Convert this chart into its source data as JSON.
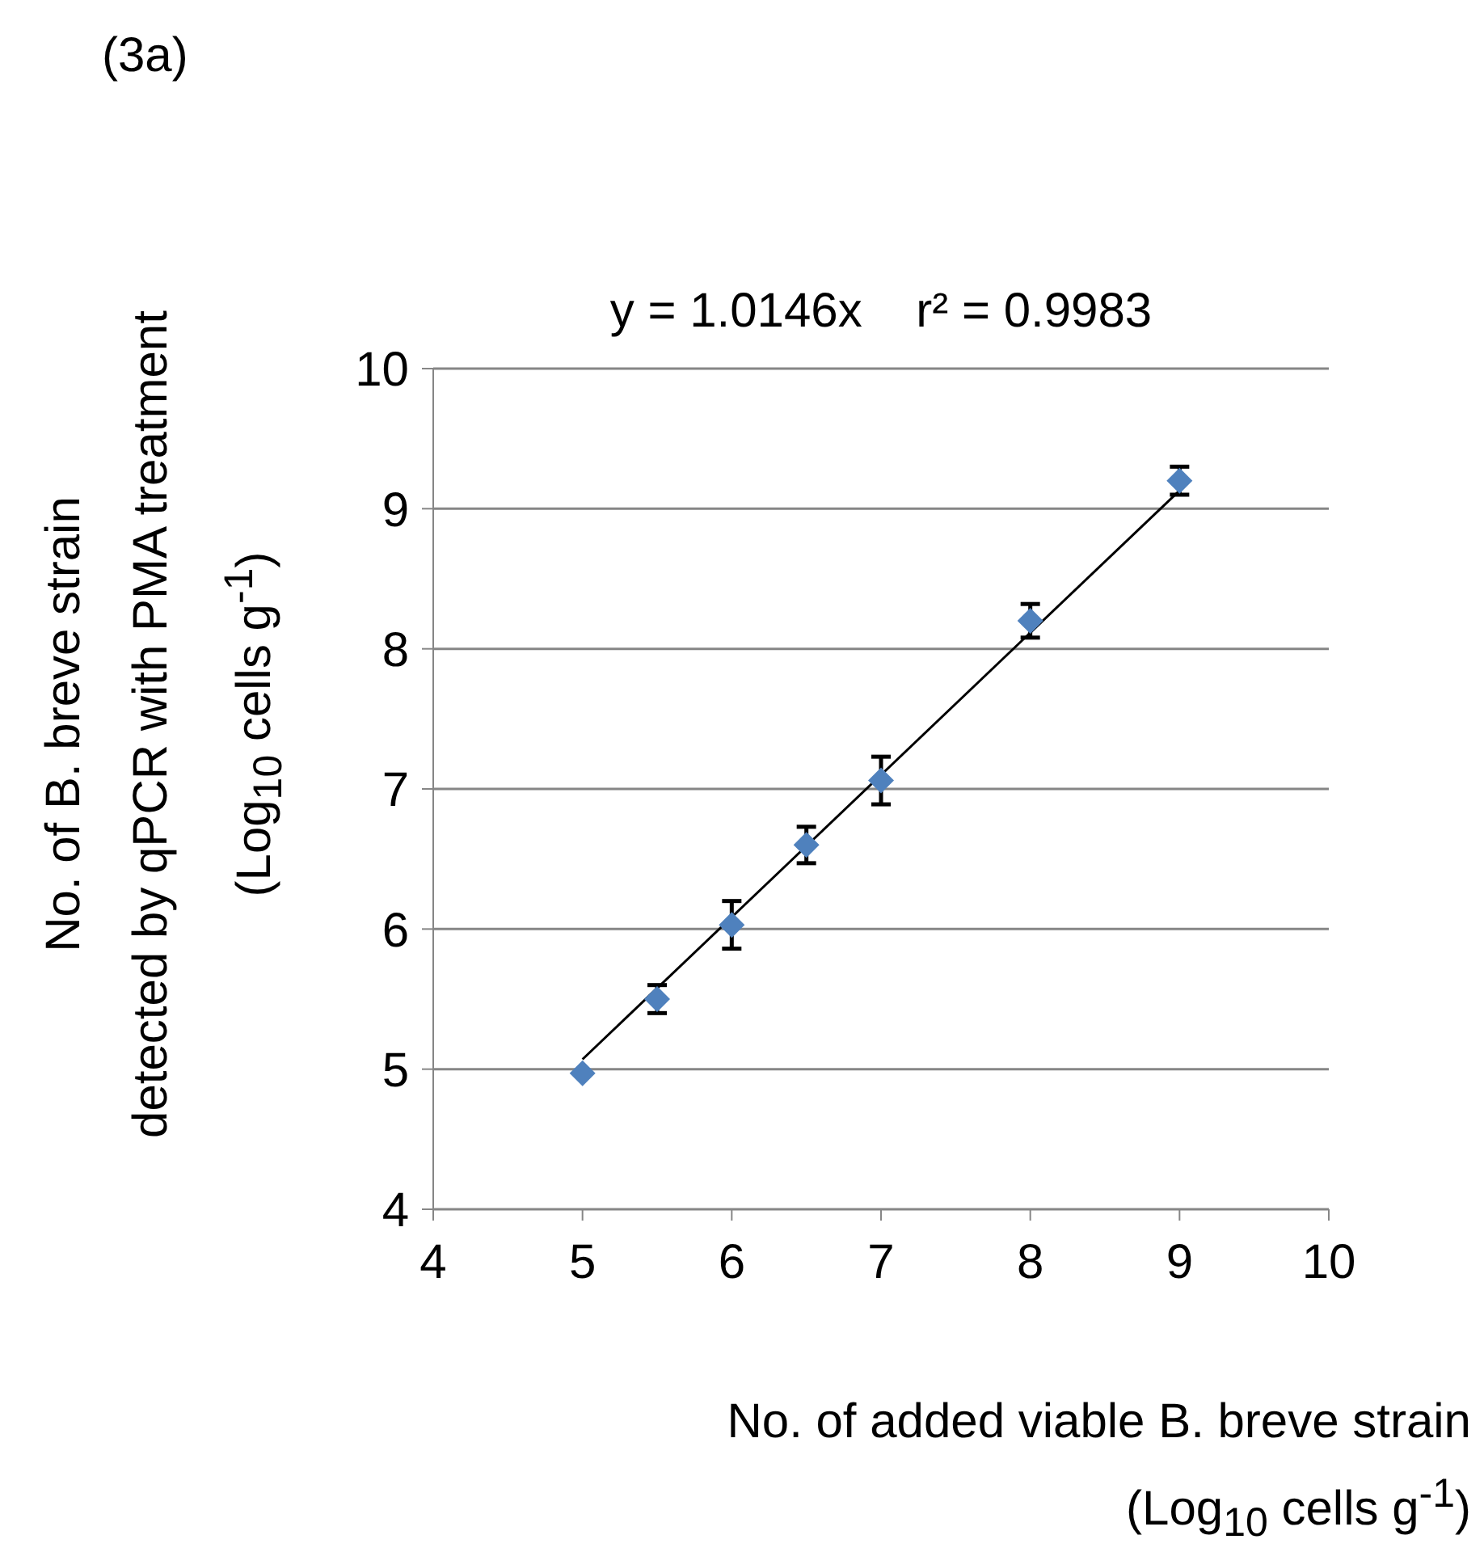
{
  "chart_data": {
    "type": "scatter",
    "title": "y = 1.0146x    r² = 0.9983",
    "xlabel": "No. of added viable B. breve strain\n(Log$_{10}$ cells g$^{-1}$)",
    "ylabel": "No. of B. breve strain\ndetected by qPCR with PMA treatment\n(Log$_{10}$ cells g$^{-1}$)",
    "annotations": [
      "(3a)"
    ],
    "series": [
      {
        "color": "#4f81bd",
        "marker": "diamond",
        "x": [
          5,
          5.5,
          6,
          6.5,
          7,
          8,
          9
        ],
        "values": [
          4.97,
          5.5,
          6.03,
          6.6,
          7.06,
          8.2,
          9.2
        ],
        "errors": [
          null,
          0.1,
          0.17,
          0.13,
          0.17,
          0.12,
          0.1
        ]
      },
      {
        "type": "line",
        "color": "#000000",
        "line_style": "solid",
        "x": [
          5,
          9
        ],
        "values": [
          5.07,
          9.13
        ]
      }
    ],
    "xlim": [
      4,
      10
    ],
    "xticks": [
      4,
      5,
      6,
      7,
      8,
      9,
      10
    ],
    "ylim": [
      4,
      10
    ],
    "yticks": [
      4,
      5,
      6,
      7,
      8,
      9,
      10
    ],
    "grid": "y"
  }
}
